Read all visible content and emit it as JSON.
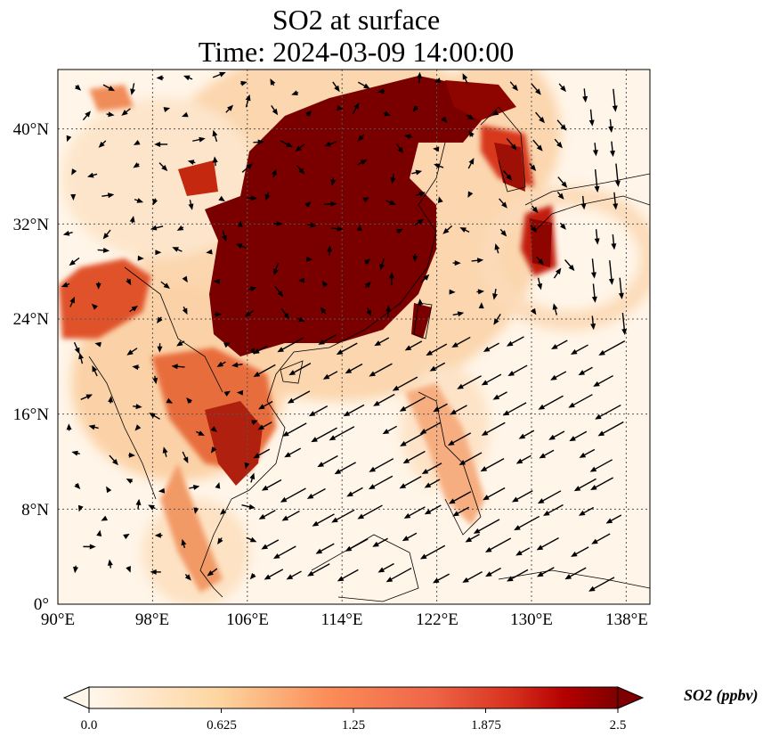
{
  "title": {
    "line1": "SO2 at surface",
    "line2": "Time: 2024-03-09 14:00:00"
  },
  "map": {
    "region": "East / Southeast Asia",
    "lon_range": [
      90,
      140
    ],
    "lat_range": [
      0,
      45
    ],
    "gridlines": true,
    "lat_ticks": [
      {
        "value": 40,
        "label": "40°N"
      },
      {
        "value": 32,
        "label": "32°N"
      },
      {
        "value": 24,
        "label": "24°N"
      },
      {
        "value": 16,
        "label": "16°N"
      },
      {
        "value": 8,
        "label": "8°N"
      },
      {
        "value": 0,
        "label": "0°"
      }
    ],
    "lon_ticks": [
      {
        "value": 90,
        "label": "90°E"
      },
      {
        "value": 98,
        "label": "98°E"
      },
      {
        "value": 106,
        "label": "106°E"
      },
      {
        "value": 114,
        "label": "114°E"
      },
      {
        "value": 122,
        "label": "122°E"
      },
      {
        "value": 130,
        "label": "130°E"
      },
      {
        "value": 138,
        "label": "138°E"
      }
    ],
    "wind_vectors": "drawn",
    "colors": {
      "background": "#fff5e8",
      "low": "#fde0bf",
      "mid": "#f1864a",
      "high": "#d8290f",
      "max": "#7a0000",
      "coast": "#000000"
    }
  },
  "colorbar": {
    "label": "SO2 (ppbv)",
    "ticks": [
      "0.0",
      "0.625",
      "1.25",
      "1.875",
      "2.5"
    ],
    "range": [
      0,
      2.5
    ],
    "extend": "both",
    "colormap": "OrRd"
  }
}
